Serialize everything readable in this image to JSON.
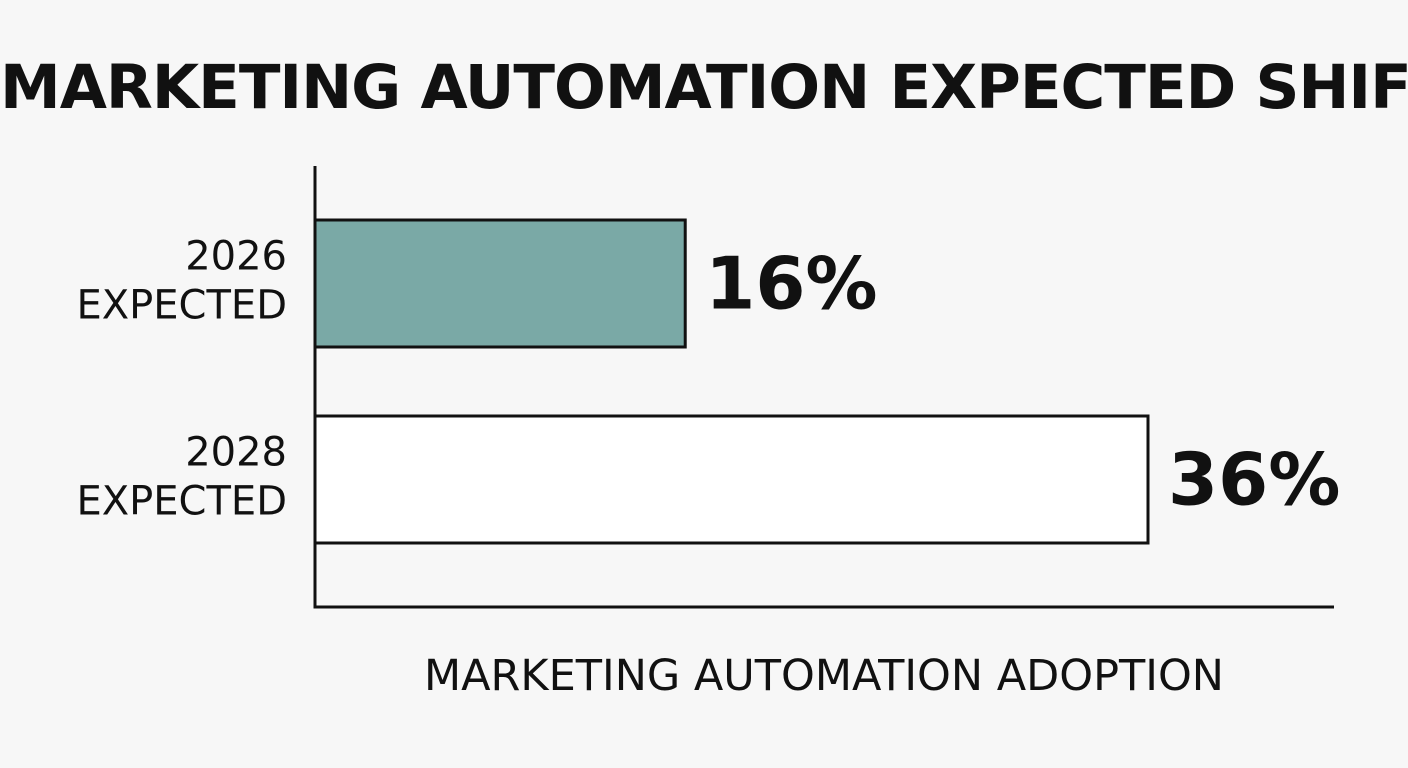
{
  "chart_data": {
    "type": "bar",
    "orientation": "horizontal",
    "title": "MARKETING AUTOMATION EXPECTED SHIFT",
    "xlabel": "MARKETING AUTOMATION ADOPTION",
    "ylabel": "",
    "categories": [
      [
        "2026",
        "EXPECTED"
      ],
      [
        "2028",
        "EXPECTED"
      ]
    ],
    "values": [
      16,
      36
    ],
    "value_labels": [
      "16%",
      "36%"
    ],
    "xlim": [
      0,
      44
    ],
    "bar_fills": [
      "#7aa9a6",
      "#ffffff"
    ],
    "bar_stroke": "#111111",
    "grid": false,
    "legend": "none"
  }
}
